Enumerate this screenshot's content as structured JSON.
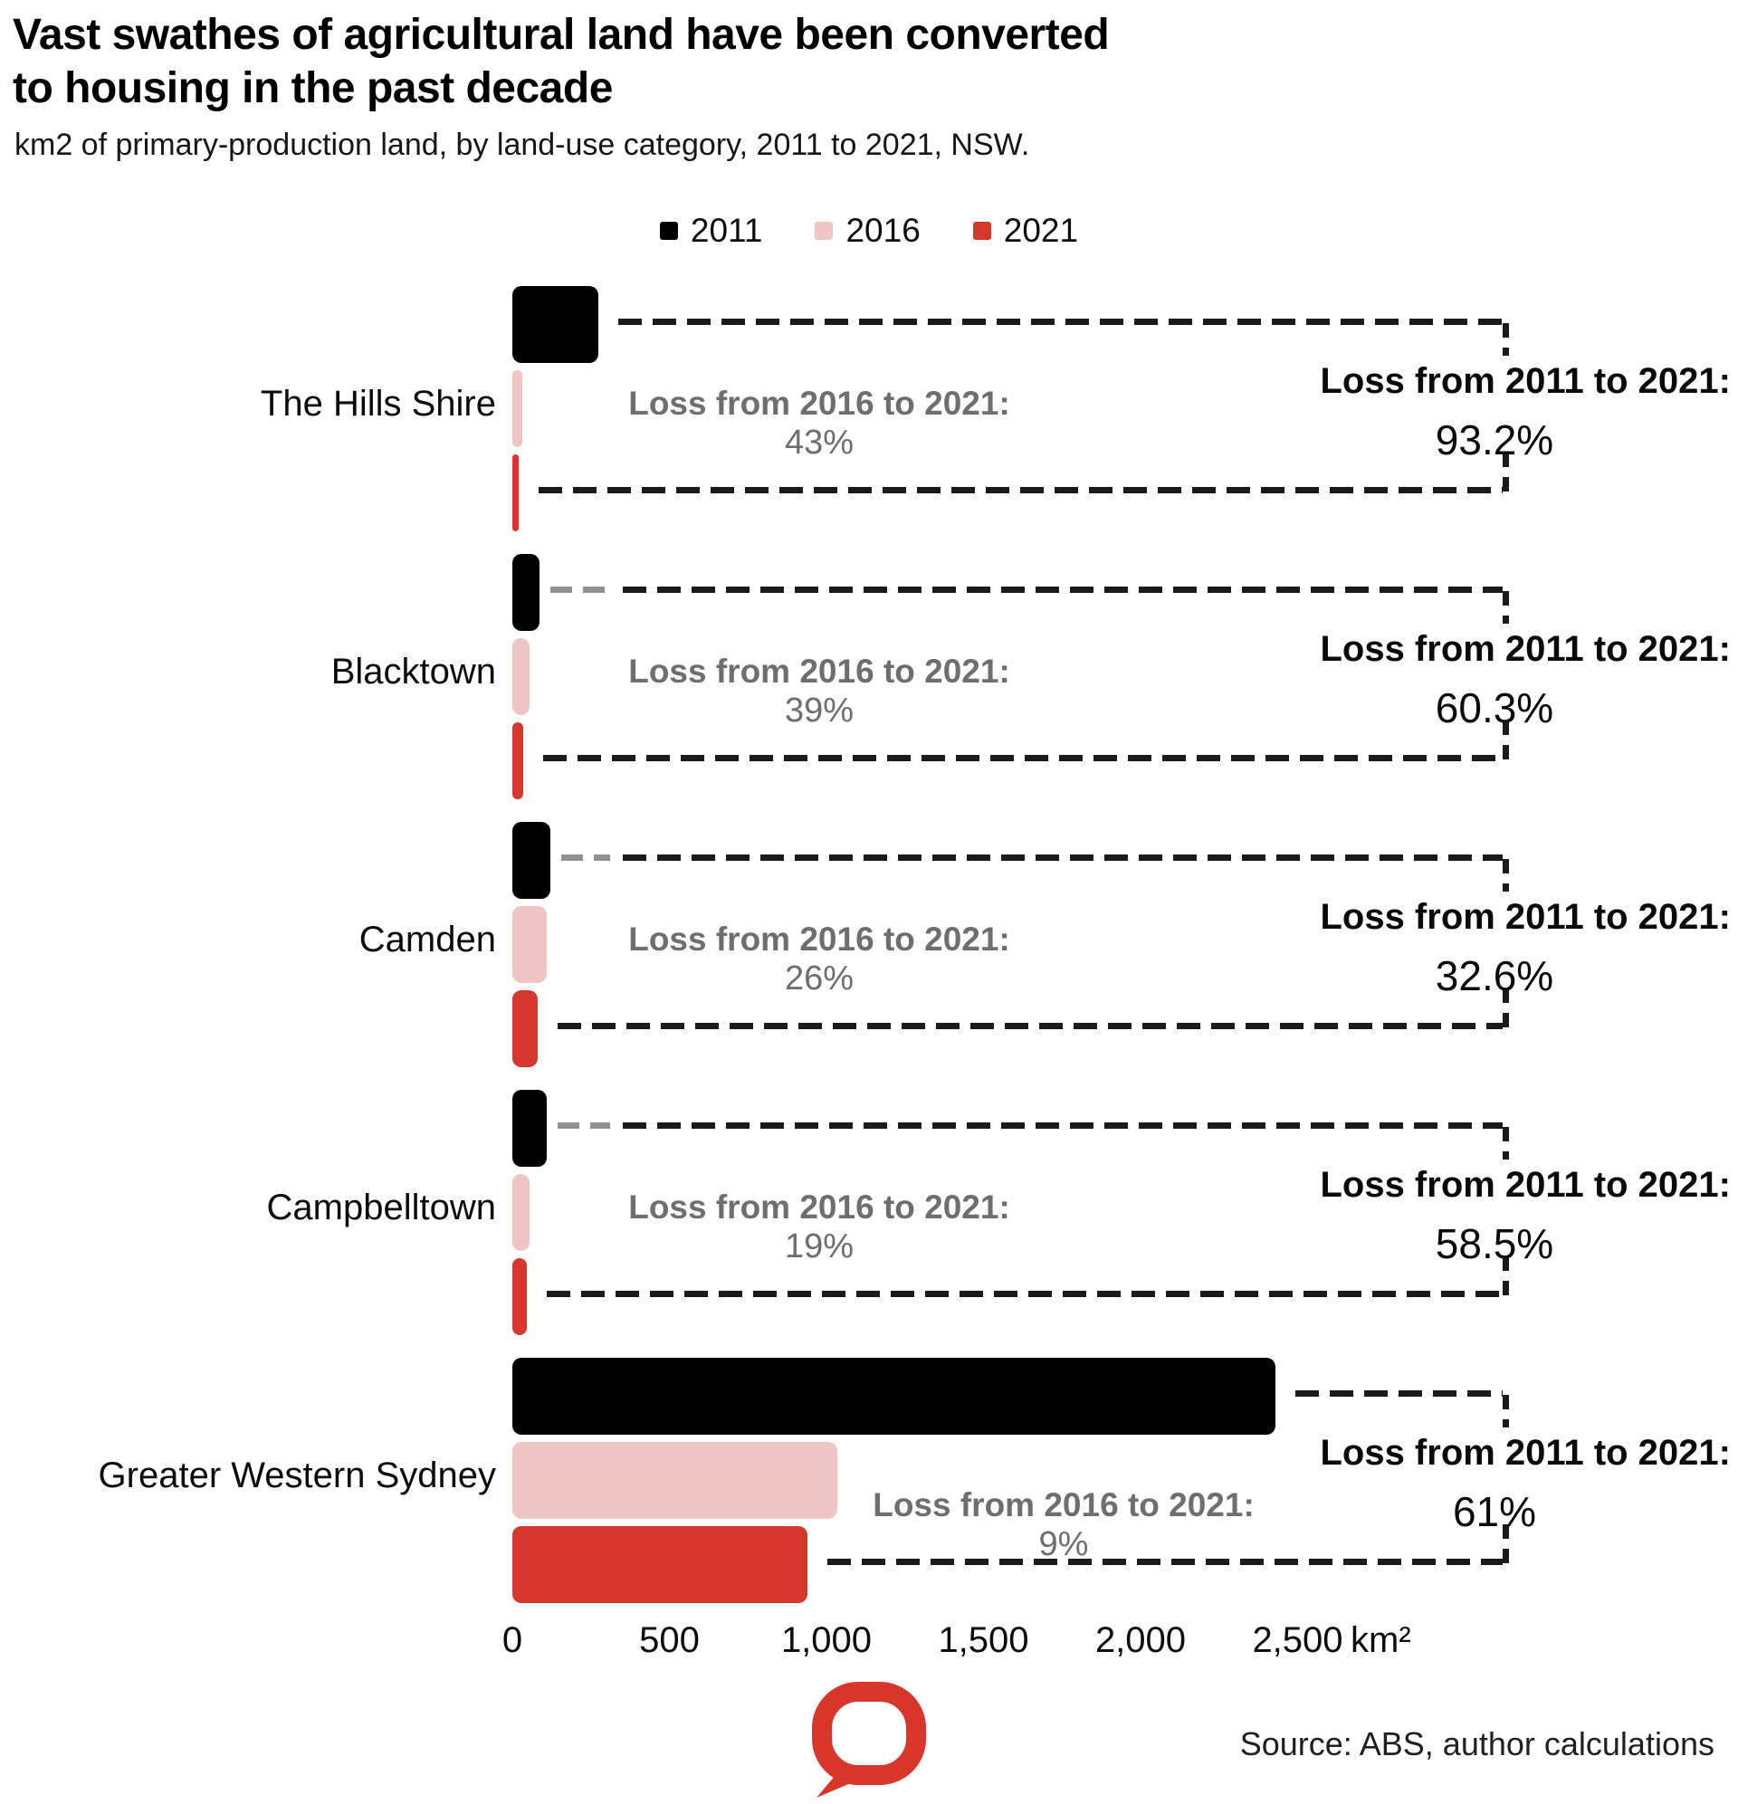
{
  "header": {
    "title": "Vast swathes of agricultural land have been converted\nto housing in the past decade",
    "subtitle": "km2 of primary-production land, by land-use category, 2011 to 2021, NSW."
  },
  "legend": {
    "items": [
      {
        "label": "2011",
        "color": "#000000"
      },
      {
        "label": "2016",
        "color": "#edc6c3"
      },
      {
        "label": "2021",
        "color": "#d5372c"
      }
    ]
  },
  "chart_data": {
    "type": "bar",
    "orientation": "horizontal",
    "title": "Vast swathes of agricultural land have been converted to housing in the past decade",
    "subtitle": "km2 of primary-production land, by land-use category, 2011 to 2021, NSW.",
    "categories": [
      "The Hills Shire",
      "Blacktown",
      "Camden",
      "Campbelltown",
      "Greater Western Sydney"
    ],
    "series": [
      {
        "name": "2011",
        "color": "#000000",
        "values": [
          275,
          86,
          121,
          110,
          2430
        ]
      },
      {
        "name": "2016",
        "color": "#edc6c3",
        "values": [
          33,
          56,
          110,
          56,
          1035
        ]
      },
      {
        "name": "2021",
        "color": "#d5372c",
        "values": [
          19,
          34,
          81,
          46,
          940
        ]
      }
    ],
    "x_axis": {
      "ticks": [
        "0",
        "500",
        "1,000",
        "1,500",
        "2,000",
        "2,500"
      ],
      "tick_values": [
        0,
        500,
        1000,
        1500,
        2000,
        2500
      ],
      "unit": "km²",
      "xlim": [
        0,
        2500
      ],
      "grid": false
    },
    "legend_position": "top",
    "annotations": {
      "loss_2016_2021_label": "Loss from 2016 to 2021:",
      "loss_2016_2021": [
        "43%",
        "39%",
        "26%",
        "19%",
        "9%"
      ],
      "loss_2011_2021_label": "Loss from 2011 to 2021:",
      "loss_2011_2021": [
        "93.2%",
        "60.3%",
        "32.6%",
        "58.5%",
        "61%"
      ]
    }
  },
  "footer": {
    "source": "Source: ABS, author calculations",
    "logo": "speech-bubble-logo",
    "logo_color": "#d8362b"
  }
}
